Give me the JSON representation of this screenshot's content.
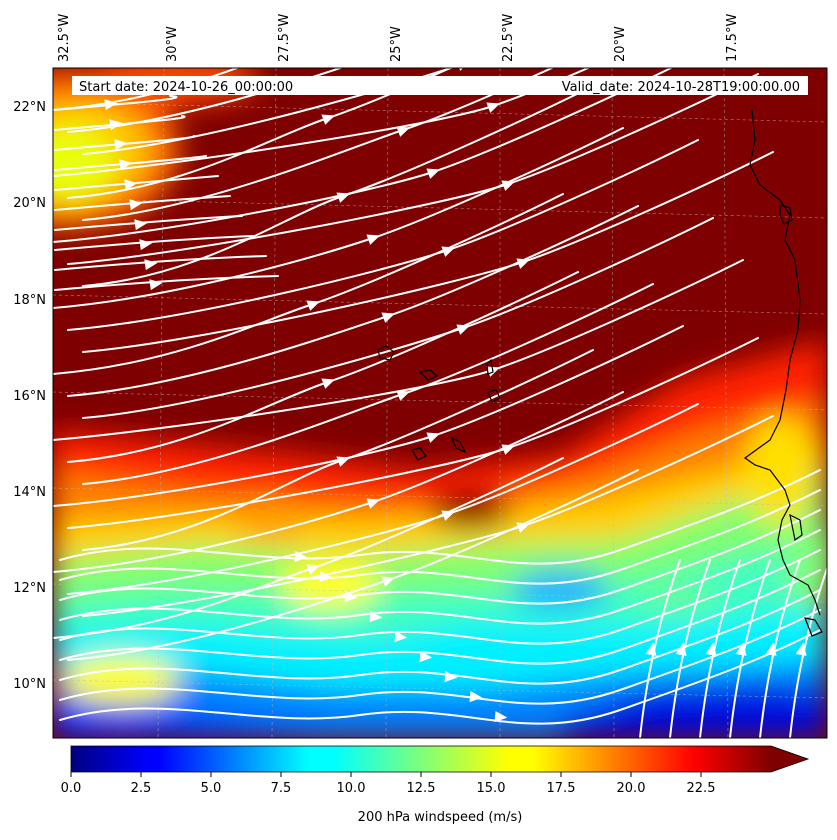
{
  "map": {
    "start_date_label": "Start date: 2024-10-26_00:00:00",
    "valid_date_label": "Valid_date: 2024-10-28T19:00:00.00",
    "longitude_labels": [
      "32.5°W",
      "30°W",
      "27.5°W",
      "25°W",
      "22.5°W",
      "20°W",
      "17.5°W"
    ],
    "latitude_labels": [
      "22°N",
      "20°N",
      "18°N",
      "16°N",
      "14°N",
      "12°N",
      "10°N"
    ],
    "field": "200 hPa windspeed",
    "streamline_color": "#ffffff",
    "coastline_color": "#000000"
  },
  "colorbar": {
    "label": "200 hPa windspeed (m/s)",
    "ticks": [
      "0.0",
      "2.5",
      "5.0",
      "7.5",
      "10.0",
      "12.5",
      "15.0",
      "17.5",
      "20.0",
      "22.5"
    ],
    "colormap": "jet",
    "range": [
      0,
      25
    ],
    "extend": "max"
  }
}
